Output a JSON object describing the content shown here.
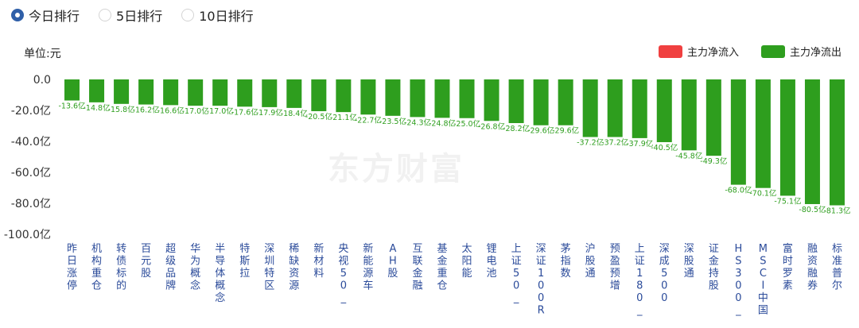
{
  "tabs": [
    {
      "label": "今日排行",
      "selected": true
    },
    {
      "label": "5日排行",
      "selected": false
    },
    {
      "label": "10日排行",
      "selected": false
    }
  ],
  "unit_label": "单位:元",
  "watermark": "东方财富",
  "colors": {
    "inflow": "#f04040",
    "outflow": "#2e9e1e",
    "accent": "#2f5fa8"
  },
  "chart_data": {
    "type": "bar",
    "legend": [
      {
        "name": "主力净流入",
        "color": "#f04040"
      },
      {
        "name": "主力净流出",
        "color": "#2e9e1e"
      }
    ],
    "legend_position": "top-right",
    "y_ticks": [
      "0.0",
      "-20.0亿",
      "-40.0亿",
      "-60.0亿",
      "-80.0亿",
      "-100.0亿"
    ],
    "ylim": [
      -100,
      0
    ],
    "grid": false,
    "categories": [
      "昨日涨停",
      "机构重仓",
      "转债标的",
      "百元股",
      "超级品牌",
      "华为概念",
      "半导体概念",
      "特斯拉",
      "深圳特区",
      "稀缺资源",
      "新材料",
      "央视50_",
      "新能源车",
      "AH股",
      "互联金融",
      "基金重仓",
      "太阳能",
      "锂电池",
      "上证50_",
      "深证100R",
      "茅指数",
      "沪股通",
      "预盈预增",
      "上证180_",
      "深成500",
      "深股通",
      "证金持股",
      "HS300_",
      "MSCI中国",
      "富时罗素",
      "融资融券",
      "标准普尔"
    ],
    "values": [
      -13.6,
      -14.8,
      -15.8,
      -16.2,
      -16.6,
      -17.0,
      -17.0,
      -17.6,
      -17.9,
      -18.4,
      -20.5,
      -21.1,
      -22.7,
      -23.5,
      -24.3,
      -24.8,
      -25.0,
      -26.8,
      -28.2,
      -29.6,
      -29.6,
      -37.2,
      -37.2,
      -37.9,
      -40.5,
      -45.8,
      -49.3,
      -68.0,
      -70.1,
      -75.1,
      -80.5,
      -81.3
    ],
    "data_labels": [
      "-13.6亿",
      "-14.8亿",
      "-15.8亿",
      "-16.2亿",
      "-16.6亿",
      "-17.0亿",
      "-17.0亿",
      "-17.6亿",
      "-17.9亿",
      "-18.4亿",
      "-20.5亿",
      "-21.1亿",
      "-22.7亿",
      "-23.5亿",
      "-24.3亿",
      "-24.8亿",
      "-25.0亿",
      "-26.8亿",
      "-28.2亿",
      "-29.6亿",
      "-29.6亿",
      "-37.2亿",
      "-37.2亿",
      "-37.9亿",
      "-40.5亿",
      "-45.8亿",
      "-49.3亿",
      "-68.0亿",
      "-70.1亿",
      "-75.1亿",
      "-80.5亿",
      "-81.3亿"
    ]
  }
}
